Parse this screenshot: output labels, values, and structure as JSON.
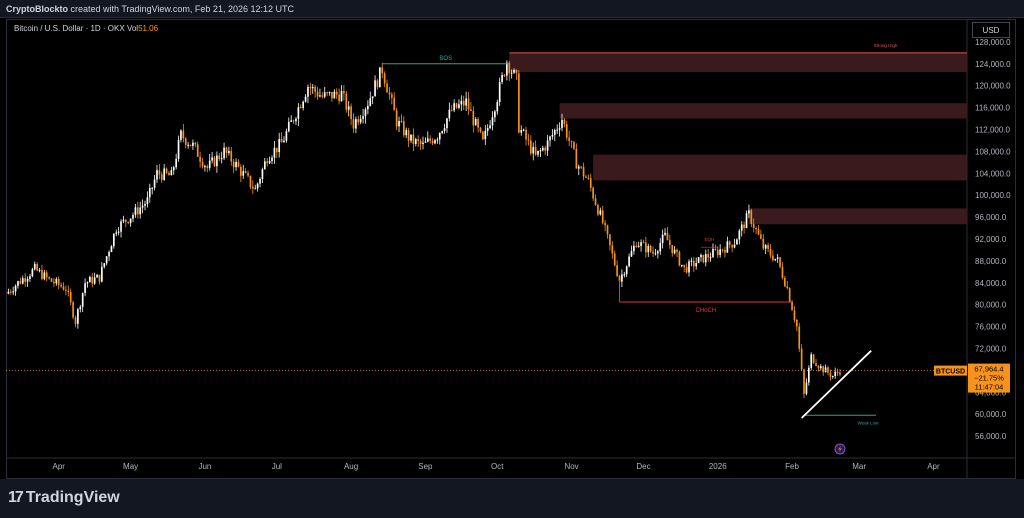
{
  "header": {
    "author": "CryptoBlockto",
    "caption": "created with TradingView.com, Feb 21, 2026 12:12 UTC"
  },
  "legend": {
    "symbol_text": "Bitcoin / U.S. Dollar · 1D · OKX",
    "vol_label": "Vol",
    "vol_value": "51.06"
  },
  "currency_button": "USD",
  "brand": {
    "mark": "17",
    "name": "TradingView"
  },
  "colors": {
    "background": "#000000",
    "up_candle": "#ffffff",
    "down_candle": "#f7931a",
    "zone_fill": "#3a1a1c",
    "zone_line": "#e0525a",
    "bos_line": "#26a69a",
    "choch_line": "#e53935",
    "trendline": "#ffffff",
    "price_line": "#f7931a"
  },
  "chart_data": {
    "type": "candlestick",
    "symbol": "BTCUSD",
    "timeframe": "1D",
    "ylim": [
      52000,
      132000
    ],
    "y_ticks": [
      "128,000.0",
      "124,000.0",
      "120,000.0",
      "116,000.0",
      "112,000.0",
      "108,000.0",
      "104,000.0",
      "100,000.0",
      "96,000.0",
      "92,000.0",
      "88,000.0",
      "84,000.0",
      "80,000.0",
      "76,000.0",
      "72,000.0",
      "64,000.0",
      "60,000.0",
      "56,000.0"
    ],
    "x_ticks": [
      "Apr",
      "May",
      "Jun",
      "Jul",
      "Aug",
      "Sep",
      "Oct",
      "Nov",
      "Dec",
      "2026",
      "Feb",
      "Mar",
      "Apr"
    ],
    "x_tick_dates": [
      "2025-04-01",
      "2025-05-01",
      "2025-06-01",
      "2025-07-01",
      "2025-08-01",
      "2025-09-01",
      "2025-10-01",
      "2025-11-01",
      "2025-12-01",
      "2026-01-01",
      "2026-02-01",
      "2026-03-01",
      "2026-04-01"
    ],
    "x_range": [
      "2025-03-10",
      "2026-04-15"
    ],
    "close_path": [
      [
        "2025-03-10",
        82000
      ],
      [
        "2025-03-15",
        84000
      ],
      [
        "2025-03-22",
        86500
      ],
      [
        "2025-03-28",
        84500
      ],
      [
        "2025-04-04",
        83000
      ],
      [
        "2025-04-08",
        77000
      ],
      [
        "2025-04-12",
        84000
      ],
      [
        "2025-04-18",
        85000
      ],
      [
        "2025-04-25",
        94000
      ],
      [
        "2025-05-02",
        96500
      ],
      [
        "2025-05-08",
        99000
      ],
      [
        "2025-05-12",
        104000
      ],
      [
        "2025-05-18",
        103500
      ],
      [
        "2025-05-22",
        111000
      ],
      [
        "2025-05-27",
        109000
      ],
      [
        "2025-06-02",
        105000
      ],
      [
        "2025-06-09",
        108000
      ],
      [
        "2025-06-14",
        105500
      ],
      [
        "2025-06-22",
        101000
      ],
      [
        "2025-06-27",
        107000
      ],
      [
        "2025-07-03",
        109500
      ],
      [
        "2025-07-10",
        116000
      ],
      [
        "2025-07-14",
        120000
      ],
      [
        "2025-07-20",
        118000
      ],
      [
        "2025-07-28",
        118500
      ],
      [
        "2025-08-02",
        113000
      ],
      [
        "2025-08-08",
        117000
      ],
      [
        "2025-08-14",
        123000
      ],
      [
        "2025-08-20",
        113500
      ],
      [
        "2025-08-26",
        110000
      ],
      [
        "2025-08-31",
        109000
      ],
      [
        "2025-09-06",
        111000
      ],
      [
        "2025-09-12",
        115500
      ],
      [
        "2025-09-18",
        117000
      ],
      [
        "2025-09-25",
        109500
      ],
      [
        "2025-10-01",
        118000
      ],
      [
        "2025-10-05",
        124500
      ],
      [
        "2025-10-09",
        121000
      ],
      [
        "2025-10-10",
        112500
      ],
      [
        "2025-10-17",
        107000
      ],
      [
        "2025-10-22",
        109500
      ],
      [
        "2025-10-28",
        114000
      ],
      [
        "2025-11-03",
        106000
      ],
      [
        "2025-11-08",
        102500
      ],
      [
        "2025-11-14",
        95000
      ],
      [
        "2025-11-21",
        84500
      ],
      [
        "2025-11-28",
        91500
      ],
      [
        "2025-12-05",
        89500
      ],
      [
        "2025-12-10",
        92500
      ],
      [
        "2025-12-18",
        86500
      ],
      [
        "2025-12-26",
        88500
      ],
      [
        "2026-01-02",
        90000
      ],
      [
        "2026-01-08",
        91500
      ],
      [
        "2026-01-14",
        96500
      ],
      [
        "2026-01-20",
        90500
      ],
      [
        "2026-01-26",
        88000
      ],
      [
        "2026-01-30",
        83000
      ],
      [
        "2026-02-03",
        76000
      ],
      [
        "2026-02-06",
        63500
      ],
      [
        "2026-02-09",
        70500
      ],
      [
        "2026-02-13",
        68500
      ],
      [
        "2026-02-18",
        67000
      ],
      [
        "2026-02-21",
        67964
      ]
    ],
    "supply_zones": [
      {
        "from": "2025-10-06",
        "to": "2026-04-15",
        "low": 122500,
        "high": 126000
      },
      {
        "from": "2025-10-27",
        "to": "2026-04-15",
        "low": 114000,
        "high": 116800
      },
      {
        "from": "2025-11-10",
        "to": "2026-04-15",
        "low": 102700,
        "high": 107400
      },
      {
        "from": "2026-01-14",
        "to": "2026-04-15",
        "low": 94700,
        "high": 97600
      }
    ],
    "annotations": [
      {
        "label": "BOS",
        "type": "bos",
        "y": 124000,
        "from": "2025-08-14",
        "to": "2025-10-06"
      },
      {
        "label": "Strong High",
        "type": "strong_high",
        "y": 126000,
        "from": "2025-10-06",
        "to": "2026-03-17"
      },
      {
        "label": "CHoCH",
        "type": "choch",
        "y": 80500,
        "from": "2025-11-21",
        "to": "2026-02-01"
      },
      {
        "label": "EQH",
        "type": "eqh",
        "y": 90500,
        "from": "2025-12-25",
        "to": "2026-01-01"
      },
      {
        "label": "Weak Low",
        "type": "weak_low",
        "y": 59800,
        "from": "2026-02-06",
        "to": "2026-03-08"
      }
    ],
    "trendline": {
      "start": [
        "2026-02-05",
        59300
      ],
      "end": [
        "2026-03-06",
        71600
      ]
    },
    "last_price": {
      "ticker": "BTCUSD",
      "price": "67,964.4",
      "change": "−21.75%",
      "countdown": "11:47:04",
      "value": 67964.4
    }
  }
}
